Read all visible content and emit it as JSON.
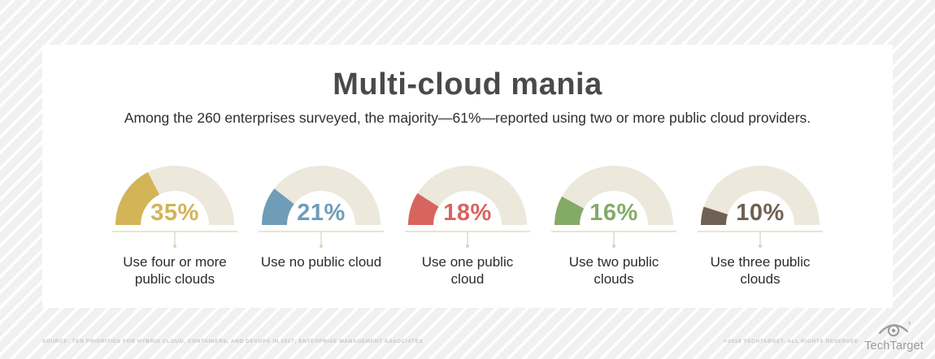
{
  "header": {
    "title": "Multi-cloud mania",
    "subtitle": "Among the 260 enterprises surveyed, the majority—61%—reported using two or more public cloud providers."
  },
  "chart_data": {
    "type": "pie",
    "variant": "half-donut-gauge-row",
    "title": "Multi-cloud mania",
    "subtitle": "Among the 260 enterprises surveyed, the majority—61%—reported using two or more public cloud providers.",
    "unit": "%",
    "scale_max_percent": 100,
    "track_color": "#ece8db",
    "legend_position": "none",
    "series": [
      {
        "label": "Use four or more public clouds",
        "value": 35,
        "color": "#d3b456"
      },
      {
        "label": "Use no public cloud",
        "value": 21,
        "color": "#6f9cb7"
      },
      {
        "label": "Use one public cloud",
        "value": 18,
        "color": "#d8645e"
      },
      {
        "label": "Use two public clouds",
        "value": 16,
        "color": "#84aa68"
      },
      {
        "label": "Use three public clouds",
        "value": 10,
        "color": "#6e6153"
      }
    ]
  },
  "footer": {
    "source": "SOURCE: TEN PRIORITIES FOR HYBRID CLOUD, CONTAINERS, AND DEVOPS IN 2017; ENTERPRISE MANAGEMENT ASSOCIATES",
    "copyright": "©2018 TECHTARGET. ALL RIGHTS RESERVED",
    "logo_text": "TechTarget",
    "logo_icon": "techtarget-eye-target-icon",
    "logo_color": "#9c9c9c"
  }
}
